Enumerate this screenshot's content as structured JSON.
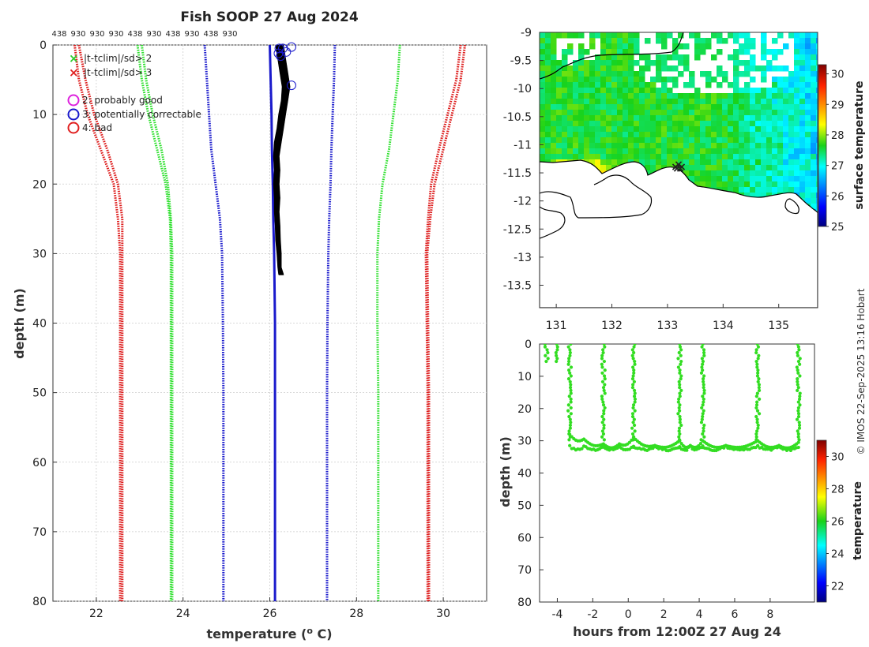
{
  "figure_title": "Fish SOOP 27 Aug 2024",
  "credit": "© IMOS 22-Sep-2025 13:16 Hobart",
  "chart_data": [
    {
      "id": "profile",
      "type": "line",
      "title": "Fish SOOP 27 Aug 2024",
      "xlabel": "temperature (° C)",
      "ylabel": "depth (m)",
      "xlim": [
        21,
        31
      ],
      "ylim": [
        0,
        80
      ],
      "y_reversed": true,
      "grid": true,
      "xticks": [
        22,
        24,
        26,
        28,
        30
      ],
      "yticks": [
        0,
        10,
        20,
        30,
        40,
        50,
        60,
        70,
        80
      ],
      "top_tick_labels": [
        "438",
        "930",
        "930",
        "930",
        "438",
        "930",
        "438",
        "930",
        "438",
        "930"
      ],
      "legend": [
        {
          "symbol": "x",
          "color": "#2ecc2e",
          "label": "|t-tclim|/sd> 2"
        },
        {
          "symbol": "x",
          "color": "#e02020",
          "label": "|t-tclim|/sd> 3"
        },
        {
          "symbol": "o",
          "color": "#dd22dd",
          "label": "2: probably good"
        },
        {
          "symbol": "o",
          "color": "#1a1acc",
          "label": "3: potentially correctable"
        },
        {
          "symbol": "o",
          "color": "#e02020",
          "label": "4: bad"
        }
      ],
      "climatology_depths": [
        0,
        5,
        10,
        15,
        20,
        25,
        30,
        40,
        50,
        60,
        70,
        80
      ],
      "series": [
        {
          "name": "clim -3sd (left)",
          "color": "#dd1a1a",
          "style": "dotted",
          "x": [
            21.5,
            21.6,
            21.8,
            22.1,
            22.4,
            22.5,
            22.55,
            22.55,
            22.55,
            22.55,
            22.55,
            22.55
          ]
        },
        {
          "name": "clim -3sd (left, b)",
          "color": "#dd1a1a",
          "style": "dotted",
          "x": [
            21.6,
            21.75,
            21.95,
            22.25,
            22.5,
            22.6,
            22.6,
            22.6,
            22.6,
            22.6,
            22.6,
            22.6
          ]
        },
        {
          "name": "clim -2sd (left)",
          "color": "#2ee02e",
          "style": "dotted",
          "x": [
            22.95,
            23.05,
            23.2,
            23.4,
            23.6,
            23.7,
            23.72,
            23.72,
            23.72,
            23.72,
            23.72,
            23.72
          ]
        },
        {
          "name": "clim -2sd (left, b)",
          "color": "#2ee02e",
          "style": "dotted",
          "x": [
            23.05,
            23.15,
            23.3,
            23.5,
            23.65,
            23.72,
            23.75,
            23.75,
            23.75,
            23.75,
            23.75,
            23.75
          ]
        },
        {
          "name": "clim -1sd (left)",
          "color": "#1a1acc",
          "style": "dotted",
          "x": [
            24.5,
            24.55,
            24.6,
            24.65,
            24.75,
            24.85,
            24.9,
            24.92,
            24.93,
            24.93,
            24.93,
            24.93
          ]
        },
        {
          "name": "clim mean",
          "color": "#1a1acc",
          "style": "solid",
          "x": [
            26.0,
            26.02,
            26.04,
            26.05,
            26.07,
            26.08,
            26.1,
            26.12,
            26.12,
            26.12,
            26.12,
            26.12
          ]
        },
        {
          "name": "clim +1sd (right)",
          "color": "#1a1acc",
          "style": "dotted",
          "x": [
            27.5,
            27.48,
            27.45,
            27.42,
            27.4,
            27.37,
            27.35,
            27.33,
            27.32,
            27.32,
            27.32,
            27.32
          ]
        },
        {
          "name": "clim +2sd (right)",
          "color": "#2ee02e",
          "style": "dotted",
          "x": [
            29.0,
            28.95,
            28.85,
            28.75,
            28.6,
            28.52,
            28.48,
            28.48,
            28.5,
            28.5,
            28.5,
            28.5
          ]
        },
        {
          "name": "clim +3sd (right)",
          "color": "#dd1a1a",
          "style": "dotted",
          "x": [
            30.5,
            30.4,
            30.2,
            30.0,
            29.8,
            29.7,
            29.63,
            29.65,
            29.67,
            29.67,
            29.67,
            29.67
          ]
        },
        {
          "name": "clim +3sd (right, b)",
          "color": "#dd1a1a",
          "style": "dotted",
          "x": [
            30.4,
            30.3,
            30.1,
            29.9,
            29.72,
            29.65,
            29.6,
            29.62,
            29.64,
            29.64,
            29.64,
            29.64
          ]
        }
      ],
      "observed_profile": {
        "name": "observed temperature",
        "color": "#000000",
        "depths": [
          0,
          2,
          4,
          6,
          8,
          10,
          12,
          14,
          16,
          18,
          20,
          22,
          24,
          26,
          28,
          30,
          32,
          33
        ],
        "x": [
          26.3,
          26.35,
          26.4,
          26.45,
          26.4,
          26.35,
          26.3,
          26.25,
          26.2,
          26.22,
          26.2,
          26.22,
          26.2,
          26.22,
          26.23,
          26.25,
          26.25,
          26.3
        ],
        "x2": [
          26.15,
          26.2,
          26.25,
          26.3,
          26.28,
          26.22,
          26.18,
          26.12,
          26.1,
          26.12,
          26.1,
          26.12,
          26.12,
          26.14,
          26.15,
          26.18,
          26.2,
          26.22
        ]
      },
      "flag_markers": [
        {
          "t": 26.22,
          "d": 0.5
        },
        {
          "t": 26.3,
          "d": 0.5
        },
        {
          "t": 26.5,
          "d": 0.3
        },
        {
          "t": 26.2,
          "d": 1.2
        },
        {
          "t": 26.38,
          "d": 1.0
        },
        {
          "t": 26.25,
          "d": 1.6
        },
        {
          "t": 26.5,
          "d": 5.8
        }
      ]
    },
    {
      "id": "map",
      "type": "heatmap",
      "xlim": [
        130.7,
        135.7
      ],
      "ylim": [
        -13.9,
        -9.0
      ],
      "xticks": [
        131,
        132,
        133,
        134,
        135
      ],
      "yticks": [
        -9,
        -9.5,
        -10,
        -10.5,
        -11,
        -11.5,
        -12,
        -12.5,
        -13,
        -13.5
      ],
      "cbar_label": "surface temperature",
      "cbar_range": [
        25,
        30.3
      ],
      "cbar_ticks": [
        25,
        26,
        27,
        28,
        29,
        30
      ],
      "cast_location": {
        "lon": 133.2,
        "lat": -11.4
      }
    },
    {
      "id": "timeseries",
      "type": "scatter",
      "xlabel": "hours from 12:00Z 27 Aug 24",
      "ylabel": "depth (m)",
      "xlim": [
        -5,
        10.5
      ],
      "ylim": [
        0,
        80
      ],
      "y_reversed": true,
      "xticks": [
        -4,
        -2,
        0,
        2,
        4,
        6,
        8
      ],
      "yticks": [
        0,
        10,
        20,
        30,
        40,
        50,
        60,
        70,
        80
      ],
      "cbar_label": "temperature",
      "cbar_range": [
        21,
        31
      ],
      "cbar_ticks": [
        22,
        24,
        26,
        28,
        30
      ],
      "point_color": "#33dd22",
      "casts": [
        -4.6,
        -4.0,
        -3.3,
        -1.4,
        0.3,
        2.9,
        4.2,
        7.3,
        9.6
      ],
      "partial_casts": [
        {
          "h": -4.6,
          "max_depth": 6
        },
        {
          "h": -4.0,
          "max_depth": 6
        }
      ],
      "bottom_depth": [
        {
          "h": -3.3,
          "d": 28
        },
        {
          "h": -2.5,
          "d": 29.5
        },
        {
          "h": -1.4,
          "d": 31
        },
        {
          "h": -0.5,
          "d": 31
        },
        {
          "h": 0.3,
          "d": 29
        },
        {
          "h": 1.5,
          "d": 31.5
        },
        {
          "h": 2.9,
          "d": 30
        },
        {
          "h": 3.5,
          "d": 31.5
        },
        {
          "h": 4.2,
          "d": 30
        },
        {
          "h": 5.5,
          "d": 31.5
        },
        {
          "h": 7.3,
          "d": 30
        },
        {
          "h": 8.5,
          "d": 31.5
        },
        {
          "h": 9.6,
          "d": 30.5
        }
      ]
    }
  ]
}
